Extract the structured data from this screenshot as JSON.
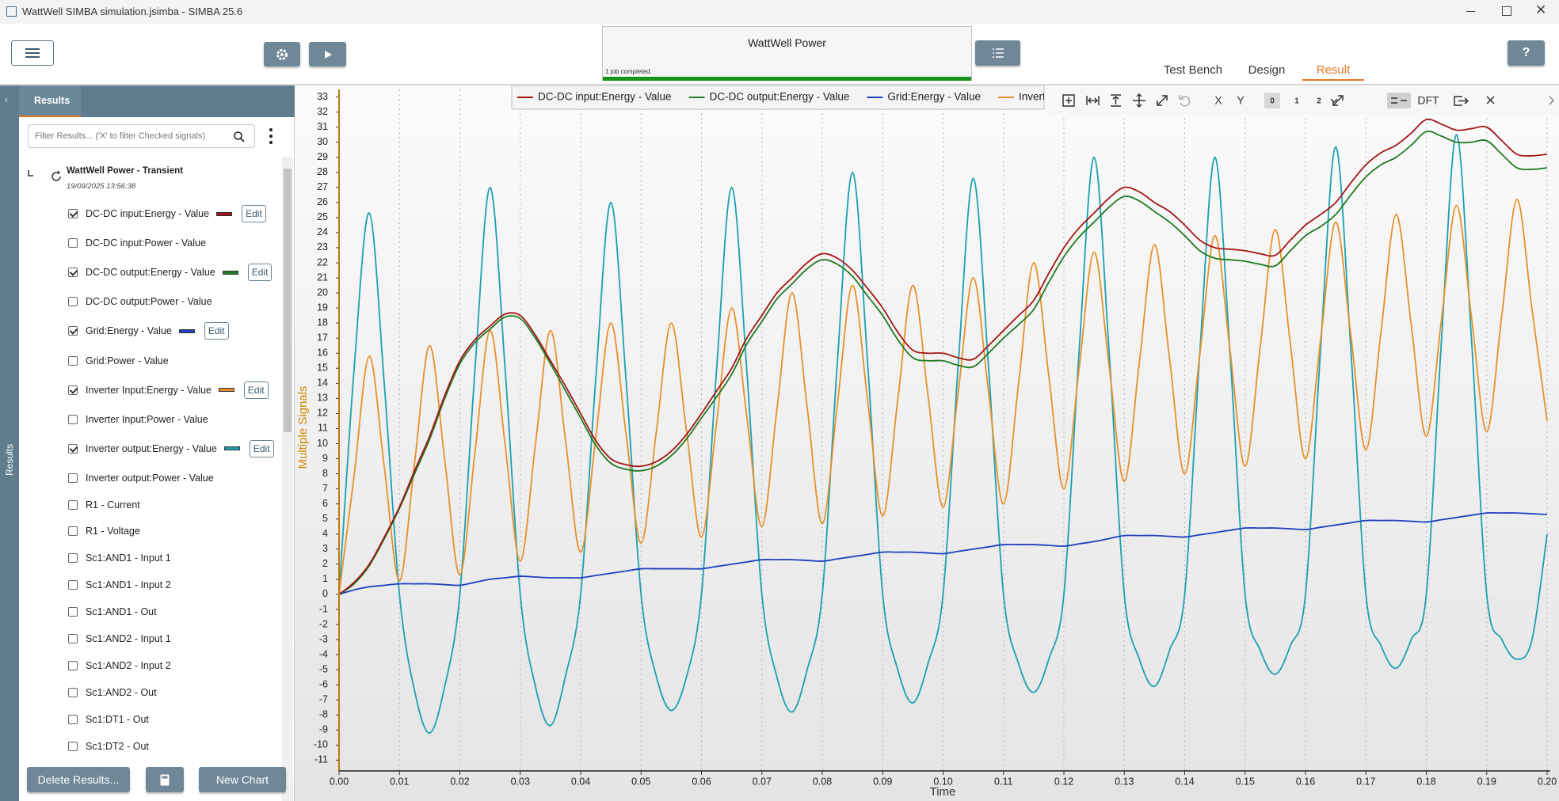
{
  "window": {
    "title": "WattWell SIMBA simulation.jsimba - SIMBA 25.6"
  },
  "job": {
    "name": "WattWell Power",
    "status": "1 job completed."
  },
  "tabs": [
    "Test Bench",
    "Design",
    "Result"
  ],
  "help": "?",
  "sidebar": {
    "label": "Results",
    "tab": "Results",
    "filter_placeholder": "Filter Results... ('X' to filter Checked signals)",
    "tree": {
      "name": "WattWell Power - Transient",
      "date": "19/09/2025 13:56:38"
    },
    "signals": [
      {
        "name": "DC-DC input:Energy - Value",
        "checked": true
      },
      {
        "name": "DC-DC input:Power - Value",
        "checked": false
      },
      {
        "name": "DC-DC output:Energy - Value",
        "checked": true
      },
      {
        "name": "DC-DC output:Power - Value",
        "checked": false
      },
      {
        "name": "Grid:Energy - Value",
        "checked": true
      },
      {
        "name": "Grid:Power - Value",
        "checked": false
      },
      {
        "name": "Inverter Input:Energy - Value",
        "checked": true
      },
      {
        "name": "Inverter Input:Power - Value",
        "checked": false
      },
      {
        "name": "Inverter output:Energy - Value",
        "checked": true
      },
      {
        "name": "Inverter output:Power - Value",
        "checked": false
      },
      {
        "name": "R1 - Current",
        "checked": false
      },
      {
        "name": "R1 - Voltage",
        "checked": false
      },
      {
        "name": "Sc1:AND1 - Input 1",
        "checked": false
      },
      {
        "name": "Sc1:AND1 - Input 2",
        "checked": false
      },
      {
        "name": "Sc1:AND1 - Out",
        "checked": false
      },
      {
        "name": "Sc1:AND2 - Input 1",
        "checked": false
      },
      {
        "name": "Sc1:AND2 - Input 2",
        "checked": false
      },
      {
        "name": "Sc1:AND2 - Out",
        "checked": false
      },
      {
        "name": "Sc1:DT1 - Out",
        "checked": false
      },
      {
        "name": "Sc1:DT2 - Out",
        "checked": false
      }
    ],
    "edit": "Edit",
    "buttons": [
      "Delete Results...",
      "New Chart"
    ]
  },
  "chart_toolbar": [
    "X",
    "Y",
    "0",
    "1",
    "2",
    "DFT"
  ],
  "chart_data": {
    "type": "line",
    "y_label": "Multiple Signals",
    "x_label": "Time",
    "legend": "top",
    "grid": true,
    "xlim": [
      0,
      0.2
    ],
    "ylim": [
      -11.4,
      33.5
    ],
    "xticks": [
      {
        "value": 0,
        "label": "0.00"
      },
      {
        "value": 0.01,
        "label": "0.01"
      },
      {
        "value": 0.02,
        "label": "0.02"
      },
      {
        "value": 0.03,
        "label": "0.03"
      },
      {
        "value": 0.04,
        "label": "0.04"
      },
      {
        "value": 0.05,
        "label": "0.05"
      },
      {
        "value": 0.06,
        "label": "0.06"
      },
      {
        "value": 0.07,
        "label": "0.07"
      },
      {
        "value": 0.08,
        "label": "0.08"
      },
      {
        "value": 0.09,
        "label": "0.09"
      },
      {
        "value": 0.1,
        "label": "0.10"
      },
      {
        "value": 0.11,
        "label": "0.11"
      },
      {
        "value": 0.12,
        "label": "0.12"
      },
      {
        "value": 0.13,
        "label": "0.13"
      },
      {
        "value": 0.14,
        "label": "0.14"
      },
      {
        "value": 0.15,
        "label": "0.15"
      },
      {
        "value": 0.16,
        "label": "0.16"
      },
      {
        "value": 0.17,
        "label": "0.17"
      },
      {
        "value": 0.18,
        "label": "0.18"
      },
      {
        "value": 0.19,
        "label": "0.19"
      },
      {
        "value": 0.2,
        "label": "0.20"
      }
    ],
    "yticks": [
      -11,
      -10,
      -9,
      -8,
      -7,
      -6,
      -5,
      -4,
      -3,
      -2,
      -1,
      0,
      1,
      2,
      3,
      4,
      5,
      6,
      7,
      8,
      9,
      10,
      11,
      12,
      13,
      14,
      15,
      16,
      17,
      18,
      19,
      20,
      21,
      22,
      23,
      24,
      25,
      26,
      27,
      28,
      29,
      30,
      31,
      32,
      33
    ],
    "x": [
      0,
      0.0025,
      0.005,
      0.0075,
      0.01,
      0.0125,
      0.015,
      0.0175,
      0.02,
      0.0225,
      0.025,
      0.0275,
      0.03,
      0.0325,
      0.035,
      0.0375,
      0.04,
      0.0425,
      0.045,
      0.0475,
      0.05,
      0.0525,
      0.055,
      0.0575,
      0.06,
      0.0625,
      0.065,
      0.0675,
      0.07,
      0.0725,
      0.075,
      0.0775,
      0.08,
      0.0825,
      0.085,
      0.0875,
      0.09,
      0.0925,
      0.095,
      0.0975,
      0.1,
      0.1025,
      0.105,
      0.1075,
      0.11,
      0.1125,
      0.115,
      0.1175,
      0.12,
      0.1225,
      0.125,
      0.1275,
      0.13,
      0.1325,
      0.135,
      0.1375,
      0.14,
      0.1425,
      0.145,
      0.1475,
      0.15,
      0.1525,
      0.155,
      0.1575,
      0.16,
      0.1625,
      0.165,
      0.1675,
      0.17,
      0.1725,
      0.175,
      0.1775,
      0.18,
      0.1825,
      0.185,
      0.1875,
      0.19,
      0.1925,
      0.195,
      0.1975,
      0.2
    ],
    "series": [
      {
        "name": "DC-DC input:Energy - Value",
        "color": "#a31515",
        "values": [
          0,
          0.8,
          2,
          3.8,
          5.8,
          8.2,
          10.5,
          13.2,
          15.5,
          16.9,
          17.8,
          18.6,
          18.5,
          17.2,
          15.5,
          13.8,
          12,
          10.2,
          9,
          8.6,
          8.5,
          8.8,
          9.5,
          10.6,
          12,
          13.5,
          15,
          17,
          18.5,
          20,
          21,
          22,
          22.6,
          22.3,
          21.5,
          20.3,
          19,
          17.4,
          16.2,
          16,
          16,
          15.7,
          15.6,
          16.5,
          17.5,
          18.5,
          19.5,
          21.3,
          23,
          24.3,
          25.3,
          26.3,
          27,
          26.7,
          26,
          25.4,
          24.5,
          23.5,
          23,
          22.9,
          22.8,
          22.6,
          22.5,
          23.5,
          24.5,
          25.2,
          26,
          27.3,
          28.5,
          29.3,
          29.8,
          30.6,
          31.5,
          31.2,
          30.8,
          30.9,
          31,
          30.1,
          29.2,
          29.1,
          29.2
        ]
      },
      {
        "name": "DC-DC output:Energy - Value",
        "color": "#1f7a1f",
        "values": [
          0,
          0.7,
          1.9,
          3.7,
          5.7,
          8,
          10.3,
          13,
          15.3,
          16.7,
          17.6,
          18.4,
          18.3,
          17,
          15.3,
          13.5,
          11.7,
          9.9,
          8.7,
          8.3,
          8.2,
          8.5,
          9.2,
          10.3,
          11.7,
          13.1,
          14.6,
          16.6,
          18.1,
          19.6,
          20.6,
          21.6,
          22.2,
          21.9,
          21.1,
          19.8,
          18.5,
          16.9,
          15.7,
          15.5,
          15.5,
          15.2,
          15.1,
          16,
          17,
          17.9,
          18.9,
          20.7,
          22.4,
          23.7,
          24.7,
          25.7,
          26.4,
          26.1,
          25.4,
          24.7,
          23.8,
          22.8,
          22.3,
          22.2,
          22.1,
          21.9,
          21.8,
          22.8,
          23.8,
          24.4,
          25.2,
          26.5,
          27.7,
          28.5,
          29,
          29.8,
          30.7,
          30.4,
          30,
          30,
          30.1,
          29.2,
          28.3,
          28.2,
          28.3
        ]
      },
      {
        "name": "Grid:Energy - Value",
        "color": "#1f3fbf",
        "values": [
          0,
          0.3,
          0.5,
          0.6,
          0.7,
          0.7,
          0.7,
          0.65,
          0.6,
          0.8,
          1,
          1.1,
          1.2,
          1.15,
          1.1,
          1.1,
          1.1,
          1.25,
          1.4,
          1.55,
          1.7,
          1.7,
          1.7,
          1.7,
          1.7,
          1.85,
          2,
          2.15,
          2.3,
          2.3,
          2.3,
          2.25,
          2.2,
          2.35,
          2.5,
          2.65,
          2.8,
          2.8,
          2.8,
          2.75,
          2.7,
          2.85,
          3,
          3.15,
          3.3,
          3.3,
          3.3,
          3.25,
          3.2,
          3.35,
          3.5,
          3.7,
          3.9,
          3.9,
          3.9,
          3.85,
          3.8,
          3.95,
          4.1,
          4.25,
          4.4,
          4.4,
          4.4,
          4.35,
          4.3,
          4.45,
          4.6,
          4.75,
          4.9,
          4.9,
          4.9,
          4.85,
          4.8,
          4.95,
          5.1,
          5.25,
          5.4,
          5.4,
          5.4,
          5.35,
          5.3
        ]
      },
      {
        "name": "Inverter Input:Energy - Value",
        "color": "#e8902a",
        "values": [
          0,
          7.9,
          15.8,
          8.4,
          0.9,
          8.7,
          16.5,
          8.9,
          1.3,
          9.4,
          17.5,
          9.9,
          2.2,
          9.9,
          17.5,
          10.2,
          2.8,
          10.4,
          18,
          10.7,
          3.4,
          10.7,
          18,
          10.9,
          3.8,
          11.4,
          19,
          11.8,
          4.5,
          12.3,
          20,
          12.4,
          4.7,
          12.6,
          20.5,
          12.9,
          5.2,
          12.9,
          20.5,
          13.2,
          5.8,
          13.4,
          21,
          13.5,
          6,
          14,
          22,
          14.5,
          7,
          14.9,
          22.7,
          15.1,
          7.5,
          15.4,
          23.2,
          15.6,
          8,
          15.9,
          23.8,
          16.2,
          8.5,
          16.4,
          24.2,
          16.6,
          9,
          16.9,
          24.7,
          17.2,
          9.6,
          17.4,
          25.2,
          17.9,
          10.5,
          18.2,
          25.8,
          18.3,
          10.8,
          18.5,
          26.2,
          18.9,
          11.5
        ]
      },
      {
        "name": "Inverter output:Energy - Value",
        "color": "#1aa0b2",
        "values": [
          0,
          15,
          25.3,
          13.9,
          0,
          -6.4,
          -9.2,
          -6.1,
          0,
          14.9,
          27,
          14.9,
          0,
          -6.1,
          -8.7,
          -5.4,
          0,
          14.3,
          26,
          14.3,
          0,
          -5.4,
          -7.7,
          -5.5,
          0,
          14.9,
          27,
          14.9,
          0,
          -5.5,
          -7.8,
          -5,
          0,
          15.4,
          28,
          15.4,
          0,
          -5,
          -7.2,
          -4.6,
          0,
          15.2,
          27.6,
          15.2,
          0,
          -4.6,
          -6.5,
          -4.3,
          0,
          16,
          29,
          16,
          0,
          -4.3,
          -6.1,
          -3.7,
          0,
          16,
          29,
          16,
          0,
          -3.7,
          -5.3,
          -3.4,
          0,
          16.3,
          29.7,
          16.3,
          0,
          -3.4,
          -4.9,
          -3,
          0,
          16.8,
          30.5,
          16.8,
          0,
          -3,
          -4.3,
          -3,
          4
        ]
      }
    ]
  }
}
